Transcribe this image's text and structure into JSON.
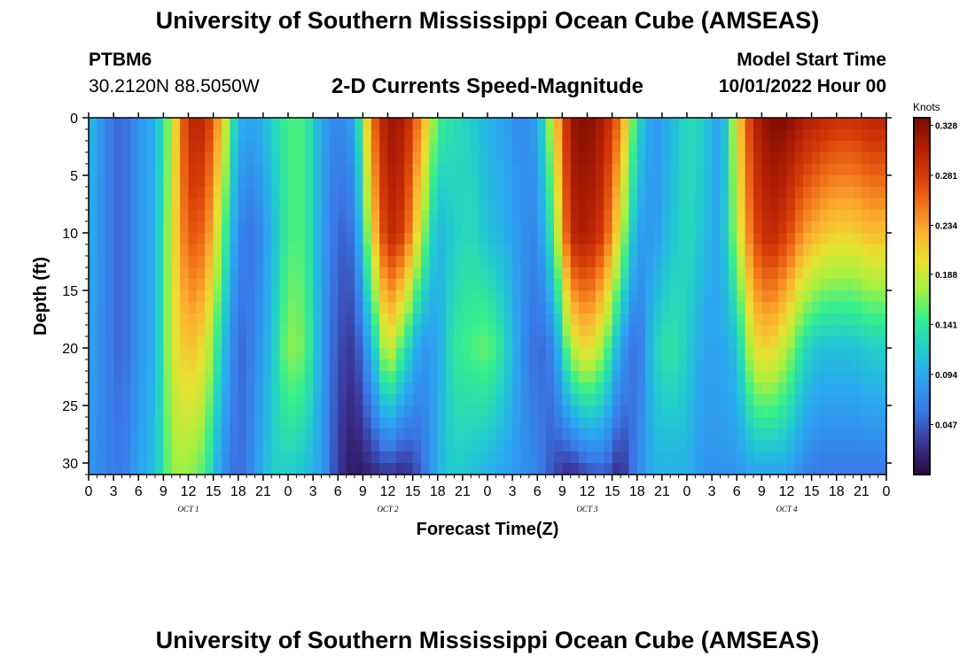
{
  "header": {
    "title": "University of Southern Mississippi Ocean Cube (AMSEAS)",
    "station_id": "PTBM6",
    "station_coords": "30.2120N  88.5050W",
    "product": "2-D Currents Speed-Magnitude",
    "model_start_label": "Model Start Time",
    "model_start_value": "10/01/2022 Hour 00"
  },
  "footer": {
    "title": "University of Southern Mississippi Ocean Cube (AMSEAS)"
  },
  "chart_data": {
    "type": "heatmap",
    "title": "2-D Currents Speed-Magnitude",
    "xlabel": "Forecast Time(Z)",
    "ylabel": "Depth (ft)",
    "x_tick_labels": [
      "0",
      "3",
      "6",
      "9",
      "12",
      "15",
      "18",
      "21",
      "0",
      "3",
      "6",
      "9",
      "12",
      "15",
      "18",
      "21",
      "0",
      "3",
      "6",
      "9",
      "12",
      "15",
      "18",
      "21",
      "0",
      "3",
      "6",
      "9",
      "12",
      "15",
      "18",
      "21",
      "0"
    ],
    "x_range_hours": [
      0,
      96
    ],
    "day_labels": [
      {
        "label": "OCT  1",
        "hour": 12
      },
      {
        "label": "OCT  2",
        "hour": 36
      },
      {
        "label": "OCT  3",
        "hour": 60
      },
      {
        "label": "OCT  4",
        "hour": 84
      }
    ],
    "y_tick_labels": [
      "0",
      "5",
      "10",
      "15",
      "20",
      "25",
      "30"
    ],
    "y_range_ft": [
      0,
      31
    ],
    "colorbar": {
      "unit": "Knots",
      "min": 0.0,
      "max": 0.335,
      "tick_labels": [
        "0.328",
        "0.281",
        "0.234",
        "0.188",
        "0.141",
        "0.094",
        "0.047"
      ],
      "ticks": [
        0.328,
        0.281,
        0.234,
        0.188,
        0.141,
        0.094,
        0.047
      ]
    },
    "colormap_stops": [
      {
        "v": 0.0,
        "color": "#2a0a3a"
      },
      {
        "v": 0.08,
        "color": "#3a2f8f"
      },
      {
        "v": 0.18,
        "color": "#3a78e8"
      },
      {
        "v": 0.28,
        "color": "#2aa8f0"
      },
      {
        "v": 0.36,
        "color": "#22d0c8"
      },
      {
        "v": 0.44,
        "color": "#3aef8a"
      },
      {
        "v": 0.52,
        "color": "#a8f040"
      },
      {
        "v": 0.6,
        "color": "#e8e030"
      },
      {
        "v": 0.68,
        "color": "#fcb030"
      },
      {
        "v": 0.76,
        "color": "#f07018"
      },
      {
        "v": 0.84,
        "color": "#d43a08"
      },
      {
        "v": 0.92,
        "color": "#b01e04"
      },
      {
        "v": 1.0,
        "color": "#7a0a02"
      }
    ],
    "speed_profiles_knots": {
      "hours": [
        0,
        2,
        4,
        6,
        8,
        10,
        12,
        14,
        16,
        18,
        20,
        22,
        24,
        26,
        28,
        30,
        32,
        34,
        36,
        38,
        40,
        42,
        44,
        46,
        48,
        50,
        52,
        54,
        56,
        58,
        60,
        62,
        64,
        66,
        68,
        70,
        72,
        74,
        76,
        78,
        80,
        82,
        84,
        86,
        88,
        90,
        92,
        94,
        96
      ],
      "depths_ft": [
        0,
        10,
        20,
        31
      ],
      "values": [
        [
          0.11,
          0.1,
          0.09,
          0.08
        ],
        [
          0.07,
          0.07,
          0.07,
          0.07
        ],
        [
          0.05,
          0.05,
          0.05,
          0.06
        ],
        [
          0.08,
          0.08,
          0.08,
          0.09
        ],
        [
          0.1,
          0.1,
          0.1,
          0.11
        ],
        [
          0.18,
          0.19,
          0.19,
          0.17
        ],
        [
          0.3,
          0.27,
          0.22,
          0.17
        ],
        [
          0.3,
          0.26,
          0.2,
          0.15
        ],
        [
          0.22,
          0.17,
          0.12,
          0.08
        ],
        [
          0.1,
          0.07,
          0.05,
          0.05
        ],
        [
          0.09,
          0.06,
          0.07,
          0.08
        ],
        [
          0.12,
          0.1,
          0.11,
          0.12
        ],
        [
          0.15,
          0.15,
          0.17,
          0.12
        ],
        [
          0.15,
          0.15,
          0.16,
          0.11
        ],
        [
          0.09,
          0.09,
          0.09,
          0.09
        ],
        [
          0.07,
          0.05,
          0.04,
          0.03
        ],
        [
          0.09,
          0.06,
          0.03,
          0.01
        ],
        [
          0.25,
          0.2,
          0.1,
          0.02
        ],
        [
          0.32,
          0.3,
          0.2,
          0.03
        ],
        [
          0.31,
          0.28,
          0.14,
          0.02
        ],
        [
          0.24,
          0.18,
          0.08,
          0.05
        ],
        [
          0.15,
          0.1,
          0.09,
          0.1
        ],
        [
          0.13,
          0.12,
          0.14,
          0.12
        ],
        [
          0.12,
          0.13,
          0.15,
          0.11
        ],
        [
          0.1,
          0.11,
          0.16,
          0.1
        ],
        [
          0.09,
          0.1,
          0.13,
          0.09
        ],
        [
          0.07,
          0.08,
          0.08,
          0.08
        ],
        [
          0.09,
          0.07,
          0.05,
          0.07
        ],
        [
          0.2,
          0.15,
          0.07,
          0.04
        ],
        [
          0.32,
          0.3,
          0.18,
          0.02
        ],
        [
          0.33,
          0.31,
          0.21,
          0.04
        ],
        [
          0.31,
          0.28,
          0.17,
          0.05
        ],
        [
          0.25,
          0.19,
          0.09,
          0.02
        ],
        [
          0.13,
          0.09,
          0.05,
          0.07
        ],
        [
          0.08,
          0.08,
          0.12,
          0.1
        ],
        [
          0.1,
          0.11,
          0.14,
          0.1
        ],
        [
          0.13,
          0.13,
          0.12,
          0.1
        ],
        [
          0.12,
          0.11,
          0.09,
          0.08
        ],
        [
          0.08,
          0.09,
          0.09,
          0.08
        ],
        [
          0.2,
          0.18,
          0.11,
          0.08
        ],
        [
          0.3,
          0.27,
          0.2,
          0.09
        ],
        [
          0.33,
          0.3,
          0.21,
          0.09
        ],
        [
          0.33,
          0.28,
          0.18,
          0.09
        ],
        [
          0.31,
          0.24,
          0.13,
          0.07
        ],
        [
          0.3,
          0.22,
          0.11,
          0.06
        ],
        [
          0.29,
          0.21,
          0.11,
          0.06
        ],
        [
          0.29,
          0.21,
          0.11,
          0.06
        ],
        [
          0.3,
          0.22,
          0.12,
          0.06
        ],
        [
          0.3,
          0.22,
          0.12,
          0.06
        ]
      ]
    }
  }
}
